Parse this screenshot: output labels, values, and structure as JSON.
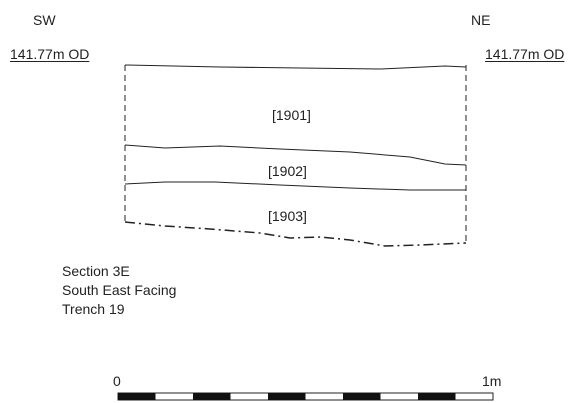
{
  "orientation": {
    "left": "SW",
    "right": "NE"
  },
  "datum": {
    "left": "141.77m OD",
    "right": "141.77m OD"
  },
  "contexts": [
    "[1901]",
    "[1902]",
    "[1903]"
  ],
  "caption": [
    "Section 3E",
    "South East Facing",
    "Trench 19"
  ],
  "scale_bar": {
    "start_label": "0",
    "end_label": "1m",
    "segments": 10
  }
}
